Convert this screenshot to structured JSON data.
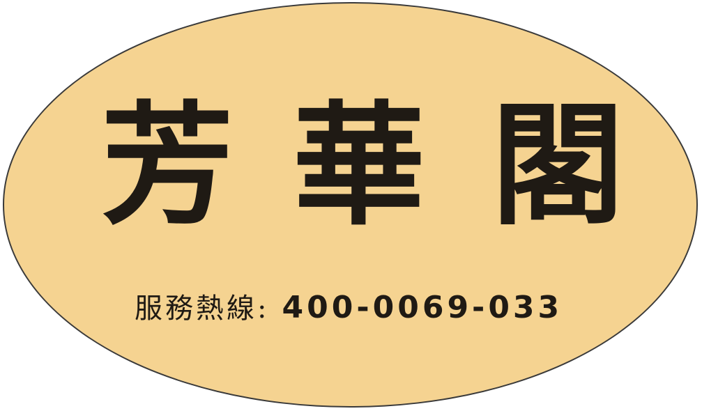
{
  "sign": {
    "brand_chars": [
      "芳",
      "華",
      "閣"
    ],
    "hotline_label": "服務熱線",
    "hotline_colon": ":",
    "hotline_number": "400-0069-033",
    "colors": {
      "background": "#f5d391",
      "text": "#1f1a14",
      "border": "#3a3a3a"
    }
  }
}
